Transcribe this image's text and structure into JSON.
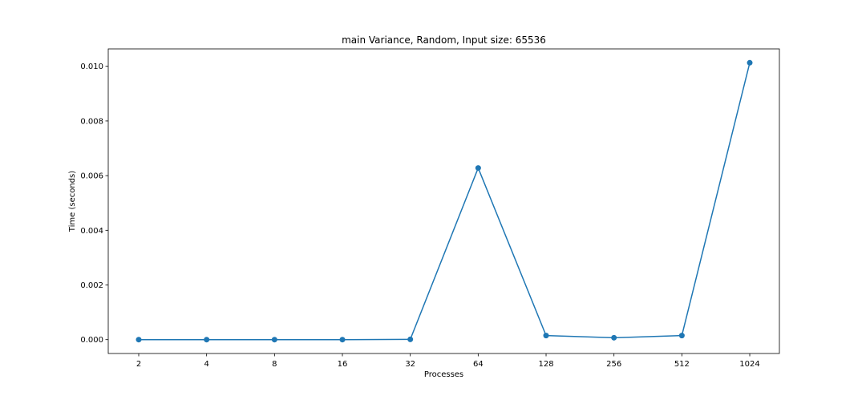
{
  "chart_data": {
    "type": "line",
    "title": "main Variance, Random, Input size: 65536",
    "xlabel": "Processes",
    "ylabel": "Time (seconds)",
    "categories": [
      "2",
      "4",
      "8",
      "16",
      "32",
      "64",
      "128",
      "256",
      "512",
      "1024"
    ],
    "series": [
      {
        "values": [
          0.0,
          0.0,
          0.0,
          0.0,
          1e-05,
          0.00628,
          0.00015,
          7e-05,
          0.00015,
          0.01013
        ],
        "color": "#1f77b4",
        "marker": "circle"
      }
    ],
    "yticks": [
      "0.000",
      "0.002",
      "0.004",
      "0.006",
      "0.008",
      "0.010"
    ],
    "ylim": [
      -0.000507,
      0.010637
    ],
    "grid": false,
    "legend": "none"
  }
}
